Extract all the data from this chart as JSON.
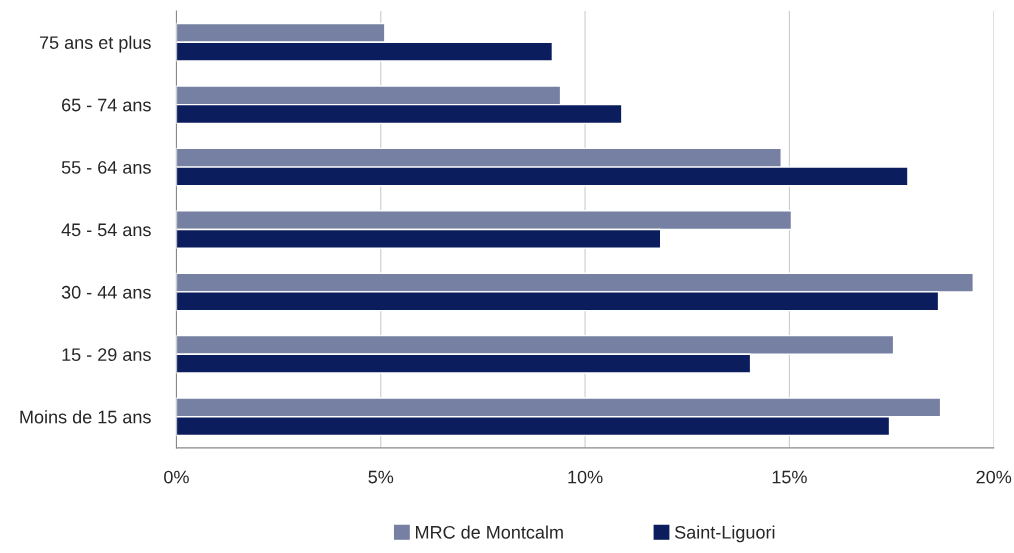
{
  "chart_data": {
    "type": "bar",
    "orientation": "horizontal",
    "categories": [
      "75 ans et plus",
      "65 - 74 ans",
      "55 - 64 ans",
      "45 - 54 ans",
      "30 - 44 ans",
      "15 - 29 ans",
      "Moins de 15 ans"
    ],
    "series": [
      {
        "name": "MRC de Montcalm",
        "color": "#7580a2",
        "values": [
          5.1,
          9.4,
          14.8,
          15.05,
          19.5,
          17.55,
          18.7
        ]
      },
      {
        "name": "Saint-Liguori",
        "color": "#0b1d5c",
        "values": [
          9.2,
          10.9,
          17.9,
          11.85,
          18.65,
          14.05,
          17.45
        ]
      }
    ],
    "xlim": [
      0,
      20
    ],
    "xticks": [
      {
        "value": 0,
        "label": "0%"
      },
      {
        "value": 5,
        "label": "5%"
      },
      {
        "value": 10,
        "label": "10%"
      },
      {
        "value": 15,
        "label": "15%"
      },
      {
        "value": 20,
        "label": "20%"
      }
    ],
    "grid": "x",
    "legend": "bottom"
  }
}
